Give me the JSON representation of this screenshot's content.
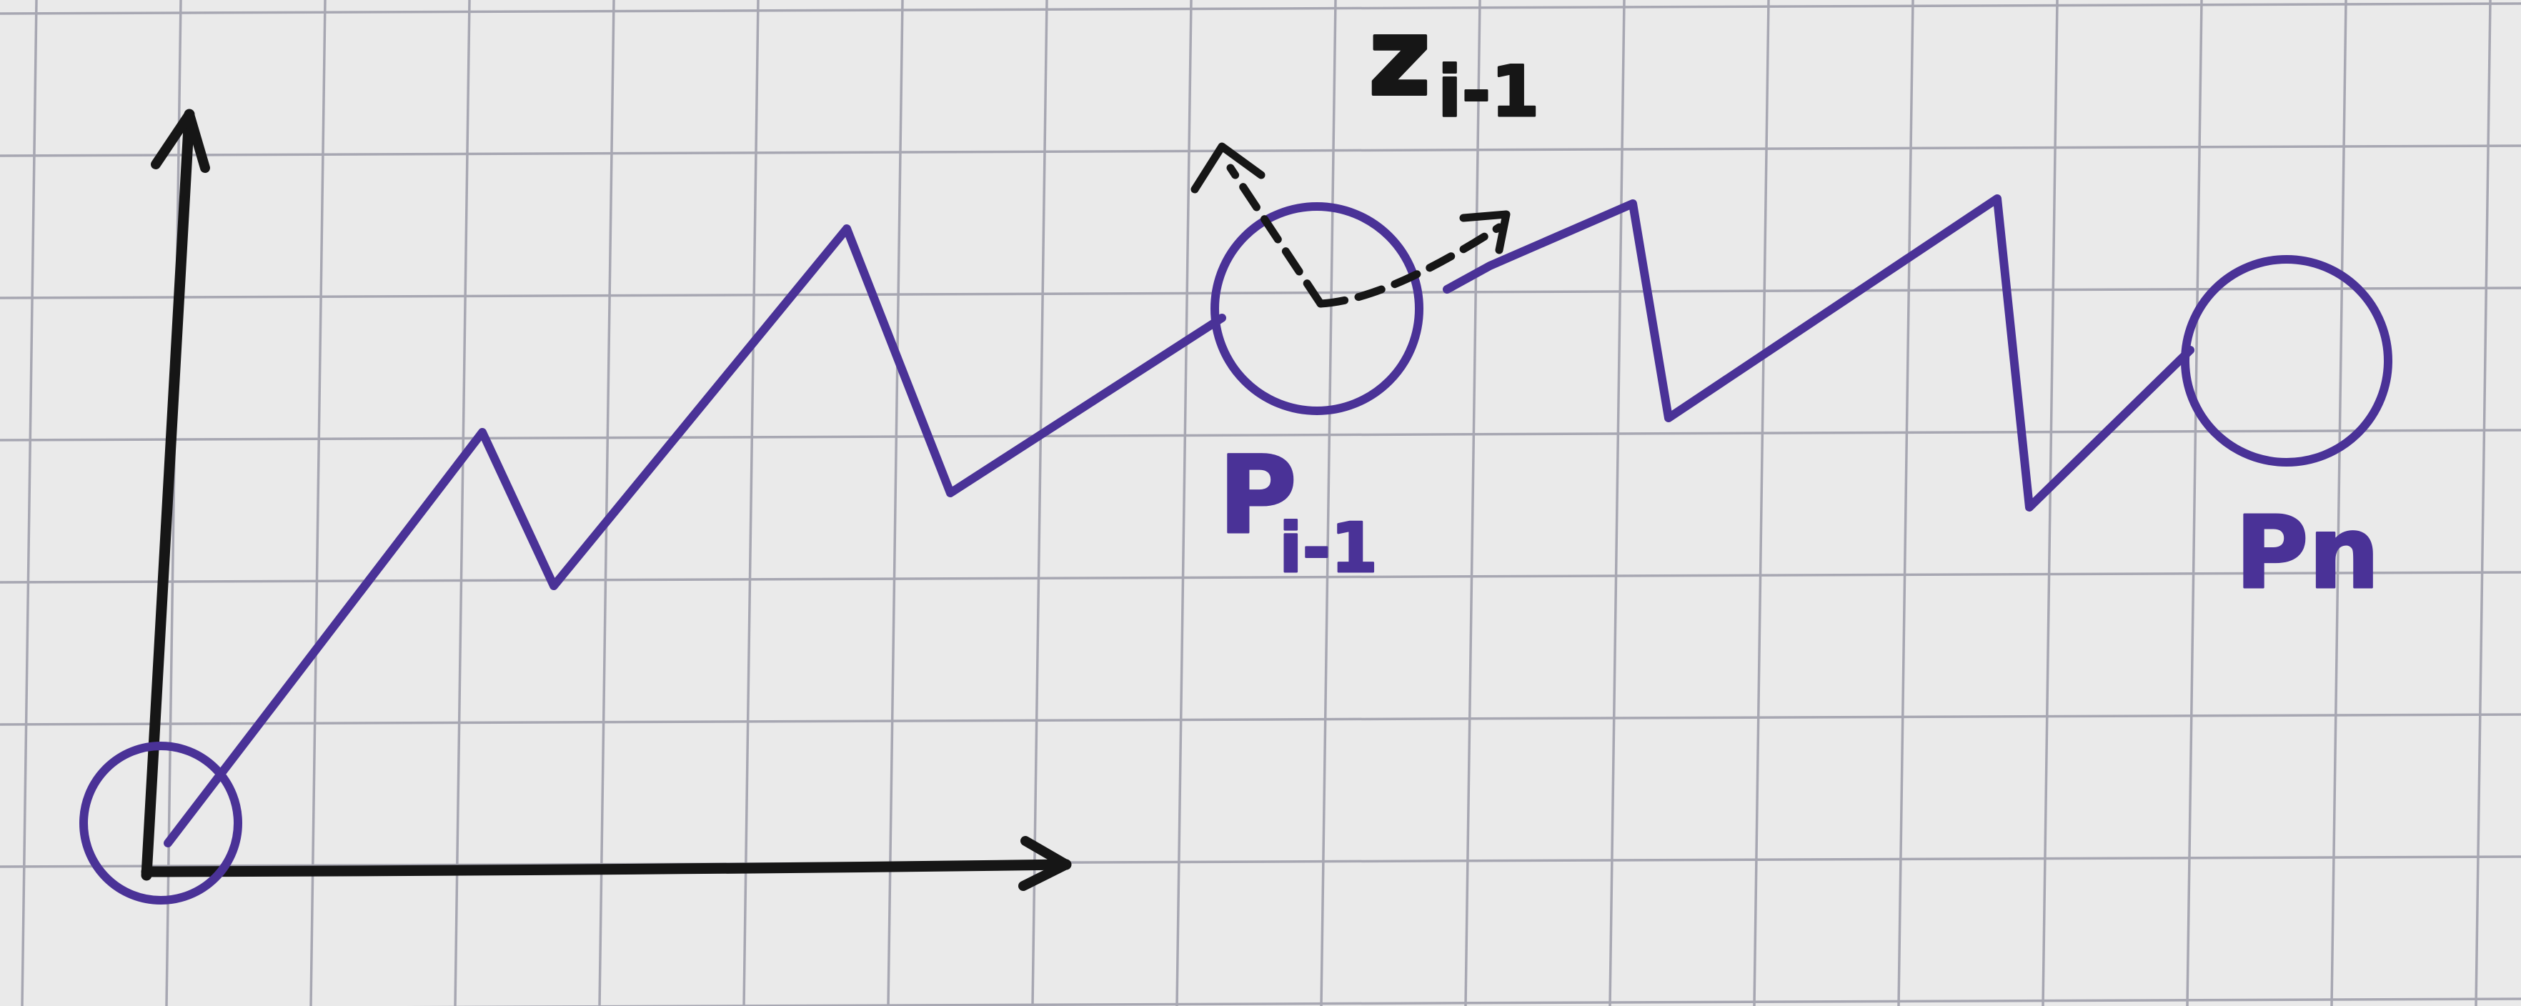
{
  "diagram": {
    "labels": {
      "z_base": "z",
      "z_sub": "i-1",
      "p_prev_base": "P",
      "p_prev_sub": "i-1",
      "p_last": "Pn"
    },
    "colors": {
      "paper": "#eaeaea",
      "grid": "#a7a7b2",
      "black_ink": "#161616",
      "purple_ink": "#4a3297"
    }
  }
}
